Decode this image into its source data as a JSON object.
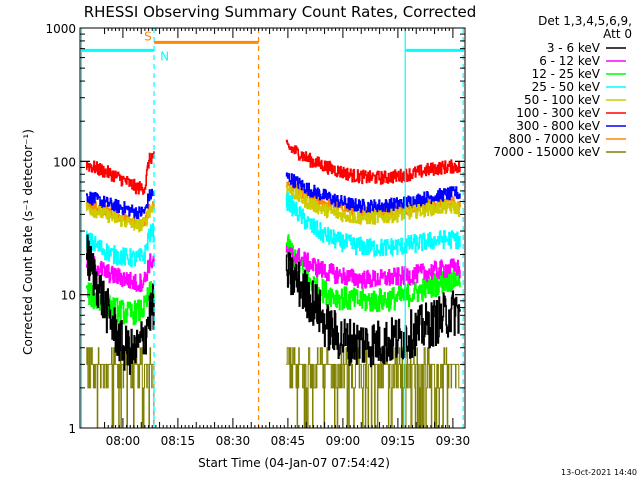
{
  "chart_data": {
    "type": "line",
    "title": "RHESSI Observing Summary Count Rates, Corrected",
    "xlabel": "Start Time (04-Jan-07 07:54:42)",
    "ylabel": "Corrected Count Rate (s⁻¹ detector⁻¹)",
    "yscale": "log",
    "ylim": [
      1,
      1000
    ],
    "xlim_min": [
      -6.7,
      98.3
    ],
    "x_units": "minutes after 07:55",
    "y_ticks": [
      "1",
      "10",
      "100",
      "1000"
    ],
    "x_ticks": [
      {
        "min": 5,
        "label": "08:00"
      },
      {
        "min": 20,
        "label": "08:15"
      },
      {
        "min": 35,
        "label": "08:30"
      },
      {
        "min": 50,
        "label": "08:45"
      },
      {
        "min": 65,
        "label": "09:00"
      },
      {
        "min": 80,
        "label": "09:15"
      },
      {
        "min": 95,
        "label": "09:30"
      }
    ],
    "legend": {
      "header1": "Det 1,3,4,5,6,9,",
      "header2": "Att 0",
      "position": "top-right"
    },
    "series": [
      {
        "name": "3 - 6 keV",
        "color": "#000000",
        "noise": 0.18,
        "points": [
          [
            -5,
            20
          ],
          [
            -2,
            12
          ],
          [
            2,
            6
          ],
          [
            5,
            4
          ],
          [
            8,
            3.6
          ],
          [
            11,
            5
          ],
          [
            12,
            7
          ],
          [
            13,
            8
          ],
          [
            50,
            14
          ],
          [
            52,
            13
          ],
          [
            55,
            10
          ],
          [
            58,
            8
          ],
          [
            60,
            6
          ],
          [
            63,
            5
          ],
          [
            65,
            4.6
          ],
          [
            68,
            4.4
          ],
          [
            72,
            4.3
          ],
          [
            76,
            4.4
          ],
          [
            80,
            4.6
          ],
          [
            83,
            5
          ],
          [
            86,
            5.5
          ],
          [
            90,
            6.2
          ],
          [
            93,
            7
          ],
          [
            96,
            7.5
          ],
          [
            97,
            7.2
          ]
        ]
      },
      {
        "name": "6 - 12 keV",
        "color": "#ff00ff",
        "noise": 0.07,
        "points": [
          [
            -5,
            18
          ],
          [
            -2,
            16
          ],
          [
            2,
            14
          ],
          [
            6,
            13
          ],
          [
            9,
            12
          ],
          [
            11,
            13
          ],
          [
            12,
            17
          ],
          [
            13,
            18
          ],
          [
            50,
            20
          ],
          [
            53,
            19
          ],
          [
            56,
            17
          ],
          [
            60,
            15
          ],
          [
            64,
            14
          ],
          [
            68,
            13.2
          ],
          [
            72,
            13
          ],
          [
            76,
            13.2
          ],
          [
            80,
            13.6
          ],
          [
            84,
            14
          ],
          [
            88,
            14.8
          ],
          [
            92,
            15.5
          ],
          [
            96,
            16
          ],
          [
            97,
            15
          ]
        ]
      },
      {
        "name": "12 - 25 keV",
        "color": "#00ff00",
        "noise": 0.09,
        "points": [
          [
            -5,
            10.5
          ],
          [
            -2,
            9
          ],
          [
            2,
            8
          ],
          [
            6,
            7.2
          ],
          [
            9,
            7.4
          ],
          [
            11,
            8
          ],
          [
            12,
            10
          ],
          [
            13,
            10.5
          ],
          [
            50,
            23
          ],
          [
            52,
            19
          ],
          [
            54,
            15
          ],
          [
            56,
            12.5
          ],
          [
            60,
            10.5
          ],
          [
            64,
            9.5
          ],
          [
            68,
            9.1
          ],
          [
            72,
            9
          ],
          [
            76,
            9.1
          ],
          [
            80,
            9.5
          ],
          [
            84,
            10.2
          ],
          [
            88,
            11.3
          ],
          [
            92,
            12.5
          ],
          [
            96,
            13.2
          ],
          [
            97,
            13
          ]
        ]
      },
      {
        "name": "25 - 50 keV",
        "color": "#00ffff",
        "noise": 0.07,
        "points": [
          [
            -5,
            26
          ],
          [
            -2,
            23
          ],
          [
            2,
            20
          ],
          [
            6,
            19
          ],
          [
            9,
            18.5
          ],
          [
            11,
            20
          ],
          [
            12,
            28
          ],
          [
            13,
            29
          ],
          [
            50,
            50
          ],
          [
            53,
            40
          ],
          [
            56,
            33
          ],
          [
            60,
            28
          ],
          [
            64,
            25
          ],
          [
            68,
            23.5
          ],
          [
            72,
            22.5
          ],
          [
            76,
            22.5
          ],
          [
            80,
            23
          ],
          [
            84,
            24
          ],
          [
            88,
            25
          ],
          [
            92,
            26
          ],
          [
            96,
            26
          ],
          [
            97,
            24
          ]
        ]
      },
      {
        "name": "50 - 100 keV",
        "color": "#cccc00",
        "noise": 0.05,
        "points": [
          [
            -5,
            45
          ],
          [
            -2,
            42
          ],
          [
            2,
            38
          ],
          [
            6,
            35
          ],
          [
            9,
            33
          ],
          [
            11,
            34
          ],
          [
            12,
            42
          ],
          [
            13,
            45
          ],
          [
            50,
            62
          ],
          [
            53,
            54
          ],
          [
            56,
            48
          ],
          [
            60,
            43
          ],
          [
            64,
            40
          ],
          [
            68,
            38
          ],
          [
            72,
            37.5
          ],
          [
            76,
            38
          ],
          [
            80,
            39.5
          ],
          [
            84,
            41.5
          ],
          [
            88,
            43.5
          ],
          [
            92,
            45
          ],
          [
            96,
            45
          ],
          [
            97,
            42
          ]
        ]
      },
      {
        "name": "100 - 300 keV",
        "color": "#ff0000",
        "noise": 0.05,
        "points": [
          [
            -5,
            95
          ],
          [
            -2,
            88
          ],
          [
            2,
            80
          ],
          [
            6,
            70
          ],
          [
            9,
            63
          ],
          [
            11,
            64
          ],
          [
            12,
            100
          ],
          [
            13,
            110
          ],
          [
            50,
            128
          ],
          [
            53,
            115
          ],
          [
            56,
            102
          ],
          [
            60,
            92
          ],
          [
            64,
            84
          ],
          [
            68,
            78
          ],
          [
            72,
            75.5
          ],
          [
            76,
            75.5
          ],
          [
            80,
            77.5
          ],
          [
            84,
            81
          ],
          [
            88,
            86
          ],
          [
            92,
            90
          ],
          [
            96,
            92
          ],
          [
            97,
            88
          ]
        ]
      },
      {
        "name": "300 - 800 keV",
        "color": "#0000ff",
        "noise": 0.05,
        "points": [
          [
            -5,
            55
          ],
          [
            -2,
            51
          ],
          [
            2,
            47
          ],
          [
            6,
            44
          ],
          [
            9,
            41
          ],
          [
            11,
            42
          ],
          [
            12,
            54
          ],
          [
            13,
            58
          ],
          [
            50,
            76
          ],
          [
            53,
            68
          ],
          [
            56,
            61
          ],
          [
            60,
            55
          ],
          [
            64,
            50
          ],
          [
            68,
            47
          ],
          [
            72,
            46
          ],
          [
            76,
            46.5
          ],
          [
            80,
            48
          ],
          [
            84,
            50.5
          ],
          [
            88,
            53.5
          ],
          [
            92,
            56
          ],
          [
            96,
            58
          ],
          [
            97,
            55
          ]
        ]
      },
      {
        "name": "800 - 7000 keV",
        "color": "#ff8800",
        "noise": 0.04,
        "points": [
          [
            -5,
            48
          ],
          [
            -2,
            45
          ],
          [
            2,
            41
          ],
          [
            6,
            37
          ],
          [
            9,
            34
          ],
          [
            11,
            35
          ],
          [
            12,
            43
          ],
          [
            13,
            46
          ],
          [
            50,
            68
          ],
          [
            53,
            60
          ],
          [
            56,
            54
          ],
          [
            60,
            49
          ],
          [
            64,
            45
          ],
          [
            68,
            43
          ],
          [
            72,
            42
          ],
          [
            76,
            42.3
          ],
          [
            80,
            43.3
          ],
          [
            84,
            45
          ],
          [
            88,
            47
          ],
          [
            92,
            49
          ],
          [
            96,
            50
          ],
          [
            97,
            47
          ]
        ]
      },
      {
        "name": "7000 - 15000 keV",
        "color": "#808000",
        "noise": 0.0,
        "points": [
          [
            -5,
            3
          ],
          [
            13,
            3
          ],
          [
            50,
            3
          ],
          [
            97,
            3
          ]
        ]
      }
    ],
    "flags": [
      {
        "label": "S",
        "color": "#ff8800",
        "from": 13.5,
        "to": 42,
        "level": 780
      },
      {
        "label": "N",
        "color": "#00ffff",
        "from": -6.2,
        "to": 13.5,
        "level": 680
      },
      {
        "label": "",
        "color": "#00ffff",
        "from": 82,
        "to": 98,
        "level": 680
      }
    ],
    "vlines": [
      {
        "min": 13.5,
        "color": "#00ffff",
        "dash": true
      },
      {
        "min": 42,
        "color": "#ff8800",
        "dash": true
      },
      {
        "min": 97.8,
        "color": "#00ffff",
        "dash": true
      },
      {
        "min": -6.3,
        "color": "#00ffff",
        "dash": false
      },
      {
        "min": 82,
        "color": "#00ffff",
        "dash": false
      }
    ],
    "gap": [
      13.5,
      49.5
    ],
    "timestamp": "13-Oct-2021 14:40"
  }
}
